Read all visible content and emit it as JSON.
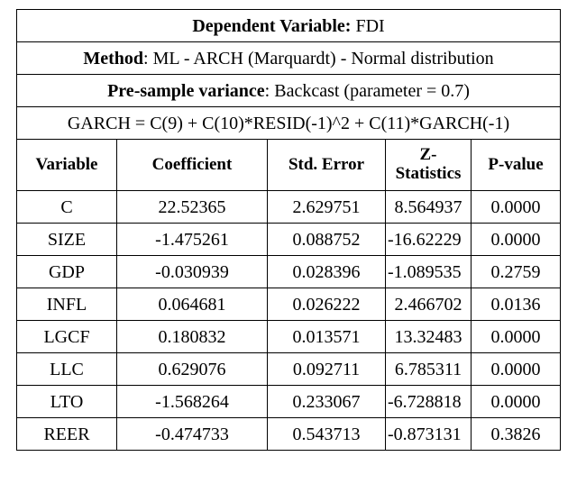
{
  "header": {
    "line1": {
      "label": "Dependent Variable:",
      "value": " FDI"
    },
    "line2": {
      "label": "Method",
      "value": ": ML - ARCH (Marquardt) - Normal distribution"
    },
    "line3": {
      "label": "Pre-sample variance",
      "value": ": Backcast (parameter = 0.7)"
    },
    "line4": "GARCH = C(9) + C(10)*RESID(-1)^2 + C(11)*GARCH(-1)"
  },
  "columns": {
    "variable": "Variable",
    "coefficient": "Coefficient",
    "std_error": "Std. Error",
    "z_stat_1": "Z-",
    "z_stat_2": "Statistics",
    "p_value": "P-value"
  },
  "rows": [
    {
      "variable": "C",
      "coefficient": "22.52365",
      "std_error": "2.629751",
      "z": "8.564937",
      "p": "0.0000"
    },
    {
      "variable": "SIZE",
      "coefficient": "-1.475261",
      "std_error": "0.088752",
      "z": "-16.62229",
      "p": "0.0000"
    },
    {
      "variable": "GDP",
      "coefficient": "-0.030939",
      "std_error": "0.028396",
      "z": "-1.089535",
      "p": "0.2759"
    },
    {
      "variable": "INFL",
      "coefficient": "0.064681",
      "std_error": "0.026222",
      "z": "2.466702",
      "p": "0.0136"
    },
    {
      "variable": "LGCF",
      "coefficient": "0.180832",
      "std_error": "0.013571",
      "z": "13.32483",
      "p": "0.0000"
    },
    {
      "variable": "LLC",
      "coefficient": "0.629076",
      "std_error": "0.092711",
      "z": "6.785311",
      "p": "0.0000"
    },
    {
      "variable": "LTO",
      "coefficient": "-1.568264",
      "std_error": "0.233067",
      "z": "-6.728818",
      "p": "0.0000"
    },
    {
      "variable": "REER",
      "coefficient": "-0.474733",
      "std_error": "0.543713",
      "z": "-0.873131",
      "p": "0.3826"
    }
  ]
}
